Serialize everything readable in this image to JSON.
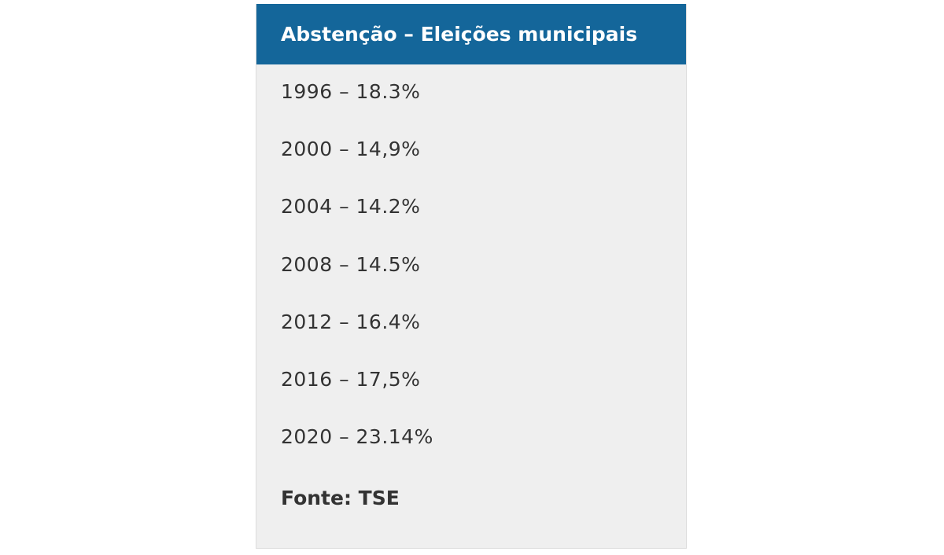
{
  "header": {
    "title": "Abstenção – Eleições municipais"
  },
  "items": [
    "1996 – 18.3%",
    "2000 – 14,9%",
    "2004 – 14.2%",
    "2008 – 14.5%",
    "2012 – 16.4%",
    "2016 – 17,5%",
    "2020 – 23.14%"
  ],
  "source": "Fonte: TSE"
}
